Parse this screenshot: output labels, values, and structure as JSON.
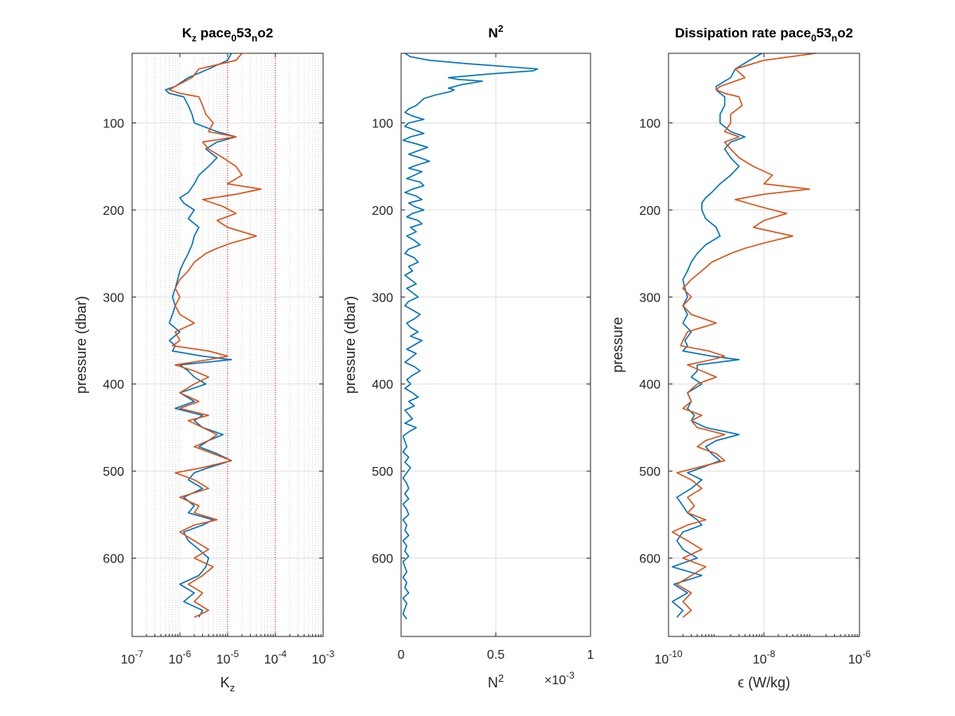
{
  "colors": {
    "series1": "#0072BD",
    "series2": "#D95319",
    "ref_line": "#C00000",
    "axis": "#262626",
    "grid": "#DFDFDF"
  },
  "chart_data": [
    {
      "type": "line",
      "title_main": "K",
      "title_sub1": "z",
      "title_mid": " pace",
      "title_sub2": "0",
      "title_mid2": "53",
      "title_sub3": "n",
      "title_end": "o2",
      "xlabel_main": "K",
      "xlabel_sub": "z",
      "ylabel": "pressure (dbar)",
      "xscale": "log",
      "xlim": [
        1e-07,
        0.001
      ],
      "ylim": [
        20,
        690
      ],
      "yreverse": true,
      "grid": "minor",
      "x_tick_values": [
        1e-07,
        1e-06,
        1e-05,
        0.0001,
        0.001
      ],
      "x_tick_base": "10",
      "x_tick_exps": [
        "-7",
        "-6",
        "-5",
        "-4",
        "-3"
      ],
      "y_ticks": [
        100,
        200,
        300,
        400,
        500,
        600
      ],
      "reference_lines_x": [
        1e-05,
        0.0001
      ],
      "series": [
        {
          "y": [
            20,
            28,
            38,
            48,
            58,
            62,
            66,
            70,
            80,
            90,
            100,
            110,
            116,
            122,
            130,
            140,
            150,
            160,
            170,
            180,
            186,
            192,
            200,
            210,
            220,
            230,
            240,
            250,
            260,
            270,
            280,
            290,
            300,
            310,
            320,
            330,
            340,
            350,
            356,
            362,
            368,
            372,
            378,
            385,
            392,
            400,
            410,
            420,
            428,
            436,
            442,
            450,
            458,
            465,
            472,
            480,
            488,
            496,
            502,
            510,
            520,
            530,
            540,
            548,
            556,
            562,
            570,
            580,
            590,
            600,
            610,
            620,
            630,
            640,
            650,
            660,
            668
          ],
          "x": [
            1.2e-05,
            1e-05,
            4e-06,
            1.5e-06,
            8e-07,
            5e-07,
            6e-07,
            1.2e-06,
            1.5e-06,
            1.8e-06,
            2e-06,
            6e-06,
            1.5e-05,
            6e-06,
            3.5e-06,
            6e-06,
            4e-06,
            2.5e-06,
            2e-06,
            1.5e-06,
            1e-06,
            1.2e-06,
            2e-06,
            1.5e-06,
            2.5e-06,
            2e-06,
            1.8e-06,
            1.5e-06,
            1.2e-06,
            1e-06,
            9e-07,
            8e-07,
            7e-07,
            8e-07,
            7e-07,
            6e-07,
            1e-06,
            6e-07,
            8e-07,
            7e-07,
            3e-06,
            1.2e-05,
            1e-06,
            1.5e-06,
            2e-06,
            3.5e-06,
            1e-06,
            2e-06,
            8e-07,
            3e-06,
            2e-06,
            3e-06,
            8e-06,
            4e-06,
            2.5e-06,
            6e-06,
            1.2e-05,
            4e-06,
            2e-06,
            1.5e-06,
            3e-06,
            1.2e-06,
            2e-06,
            1.5e-06,
            5e-06,
            3e-06,
            1.2e-06,
            1.5e-06,
            2.5e-06,
            4e-06,
            3.5e-06,
            2.5e-06,
            1e-06,
            2e-06,
            1.2e-06,
            3e-06,
            2.5e-06
          ]
        },
        {
          "y": [
            20,
            28,
            38,
            48,
            58,
            62,
            66,
            70,
            80,
            90,
            100,
            110,
            116,
            122,
            130,
            140,
            150,
            160,
            170,
            176,
            182,
            188,
            196,
            204,
            212,
            220,
            230,
            238,
            244,
            250,
            260,
            270,
            280,
            290,
            300,
            310,
            320,
            330,
            340,
            350,
            356,
            362,
            368,
            372,
            378,
            385,
            392,
            400,
            410,
            420,
            428,
            436,
            442,
            450,
            458,
            465,
            472,
            480,
            488,
            496,
            502,
            510,
            520,
            530,
            540,
            548,
            556,
            562,
            570,
            580,
            590,
            600,
            610,
            620,
            630,
            640,
            650,
            660,
            668
          ],
          "x": [
            2e-05,
            1.5e-05,
            2.5e-06,
            1.8e-06,
            8e-07,
            6e-07,
            1e-06,
            2.5e-06,
            3e-06,
            3.5e-06,
            5e-06,
            4e-06,
            1.5e-05,
            3e-06,
            4e-06,
            8e-06,
            1.5e-05,
            2e-05,
            1e-05,
            5e-05,
            1.5e-05,
            3e-06,
            8e-06,
            1.5e-05,
            6e-06,
            1e-05,
            4e-05,
            1.2e-05,
            6e-06,
            3.5e-06,
            2e-06,
            1.5e-06,
            1e-06,
            8e-07,
            1e-06,
            8e-07,
            1e-06,
            2e-06,
            8e-07,
            1e-06,
            7e-07,
            4e-06,
            1e-05,
            4e-06,
            8e-07,
            2e-06,
            4e-06,
            2e-06,
            1e-06,
            2.5e-06,
            1e-06,
            4e-06,
            1.5e-06,
            3e-06,
            6e-06,
            4e-06,
            2e-06,
            5e-06,
            1.2e-05,
            3e-06,
            8e-07,
            2e-06,
            4e-06,
            1e-06,
            2.5e-06,
            2e-06,
            6e-06,
            2e-06,
            1e-06,
            2e-06,
            4e-06,
            2e-06,
            5e-06,
            3e-06,
            1.5e-06,
            3e-06,
            2e-06,
            4e-06,
            2e-06
          ]
        }
      ]
    },
    {
      "type": "line",
      "title_main": "N",
      "title_sup": "2",
      "xlabel_main": "N",
      "xlabel_sup": "2",
      "ylabel": "pressure (dbar)",
      "xscale": "linear",
      "xlim": [
        0,
        0.001
      ],
      "ylim": [
        20,
        690
      ],
      "yreverse": true,
      "grid": "major",
      "x_ticks": [
        0,
        0.0005,
        0.001
      ],
      "x_tick_labels": [
        "0",
        "0.5",
        "1"
      ],
      "exponent_prefix": "×10",
      "exponent_power": "-3",
      "y_ticks": [
        100,
        200,
        300,
        400,
        500,
        600
      ],
      "series": [
        {
          "y": [
            20,
            24,
            28,
            32,
            36,
            38,
            40,
            44,
            48,
            50,
            52,
            56,
            60,
            62,
            64,
            68,
            72,
            76,
            80,
            84,
            88,
            92,
            96,
            100,
            104,
            108,
            112,
            116,
            120,
            124,
            128,
            132,
            136,
            140,
            144,
            148,
            152,
            156,
            160,
            164,
            168,
            172,
            176,
            180,
            184,
            188,
            192,
            196,
            200,
            204,
            208,
            212,
            216,
            220,
            225,
            230,
            235,
            240,
            245,
            250,
            255,
            260,
            265,
            270,
            275,
            280,
            285,
            290,
            295,
            300,
            305,
            310,
            315,
            320,
            325,
            330,
            335,
            340,
            345,
            350,
            355,
            360,
            365,
            370,
            375,
            380,
            385,
            390,
            395,
            400,
            405,
            410,
            415,
            420,
            425,
            430,
            435,
            440,
            445,
            450,
            455,
            460,
            466,
            472,
            478,
            484,
            490,
            496,
            502,
            508,
            514,
            520,
            526,
            532,
            538,
            544,
            550,
            556,
            562,
            568,
            574,
            580,
            586,
            592,
            598,
            604,
            610,
            616,
            622,
            628,
            634,
            640,
            646,
            652,
            658,
            664,
            670
          ],
          "x": [
            2e-05,
            5e-05,
            0.00015,
            0.00035,
            0.0006,
            0.00072,
            0.0007,
            0.00045,
            0.00025,
            0.0003,
            0.00043,
            0.00032,
            0.00025,
            0.00028,
            0.00026,
            0.00018,
            0.00012,
            0.0001,
            8e-05,
            4e-05,
            2e-05,
            6e-05,
            0.00012,
            4e-05,
            2e-05,
            7e-05,
            0.00012,
            5e-05,
            1e-05,
            8e-05,
            0.00014,
            9e-05,
            4e-05,
            0.0001,
            0.00015,
            9e-05,
            4e-05,
            0.00011,
            7e-05,
            3e-05,
            0.0001,
            0.00012,
            6e-05,
            2e-05,
            8e-05,
            0.00011,
            4e-05,
            7e-05,
            0.00012,
            6e-05,
            3e-05,
            9e-05,
            0.00011,
            5e-05,
            8e-05,
            3e-05,
            7e-05,
            0.0001,
            4e-05,
            2e-05,
            7e-05,
            9e-05,
            4e-05,
            6e-05,
            2e-05,
            5e-05,
            8e-05,
            3e-05,
            6e-05,
            9e-05,
            4e-05,
            2e-05,
            6e-05,
            0.0001,
            7e-05,
            3e-05,
            5e-05,
            9e-05,
            5e-05,
            0.00011,
            7e-05,
            3e-05,
            8e-05,
            5e-05,
            2e-05,
            7e-05,
            0.0001,
            6e-05,
            3e-05,
            5e-05,
            2e-05,
            6e-05,
            9e-05,
            4e-05,
            7e-05,
            2e-05,
            4e-05,
            6e-05,
            2e-05,
            8e-05,
            4e-05,
            1e-05,
            2e-05,
            3e-05,
            1e-05,
            4e-05,
            2e-05,
            5e-05,
            3e-05,
            1e-05,
            3e-05,
            4e-05,
            2e-05,
            4e-05,
            1e-05,
            3e-05,
            4e-05,
            1e-05,
            3e-05,
            2e-05,
            4e-05,
            1e-05,
            3e-05,
            2e-05,
            4e-05,
            1e-05,
            2e-05,
            3e-05,
            1e-05,
            3e-05,
            2e-05,
            4e-05,
            1e-05,
            3e-05,
            2e-05,
            1e-05,
            3e-05
          ]
        }
      ]
    },
    {
      "type": "line",
      "title_main": "Dissipation rate pace",
      "title_sub1": "0",
      "title_mid": "53",
      "title_sub2": "n",
      "title_end": "o2",
      "xlabel": "ϵ (W/kg)",
      "ylabel": "pressure",
      "xscale": "log",
      "xlim": [
        1e-10,
        1e-06
      ],
      "ylim": [
        20,
        690
      ],
      "yreverse": true,
      "grid": "major",
      "x_tick_values": [
        1e-10,
        1e-08,
        1e-06
      ],
      "x_tick_base": "10",
      "x_tick_exps": [
        "-10",
        "-8",
        "-6"
      ],
      "y_ticks": [
        100,
        200,
        300,
        400,
        500,
        600
      ],
      "series": [
        {
          "y": [
            20,
            28,
            38,
            48,
            58,
            62,
            66,
            70,
            80,
            90,
            100,
            110,
            116,
            122,
            130,
            140,
            150,
            160,
            170,
            180,
            186,
            192,
            200,
            210,
            220,
            230,
            240,
            250,
            260,
            270,
            280,
            290,
            300,
            310,
            320,
            330,
            340,
            350,
            356,
            362,
            368,
            372,
            378,
            385,
            392,
            400,
            410,
            420,
            428,
            436,
            442,
            450,
            458,
            465,
            472,
            480,
            488,
            496,
            502,
            510,
            520,
            530,
            540,
            548,
            556,
            562,
            570,
            580,
            590,
            600,
            610,
            620,
            630,
            640,
            650,
            660,
            668
          ],
          "x": [
            9e-09,
            5e-09,
            2.5e-09,
            2e-09,
            1e-09,
            1e-09,
            1.2e-09,
            1.5e-09,
            1.5e-09,
            1.2e-09,
            1.2e-09,
            2e-09,
            4e-09,
            2e-09,
            1.5e-09,
            2e-09,
            3e-09,
            2e-09,
            1.2e-09,
            8e-10,
            6e-10,
            5e-10,
            5e-10,
            6e-10,
            1e-09,
            1.2e-09,
            6e-10,
            4e-10,
            3e-10,
            2.5e-10,
            2e-10,
            2.2e-10,
            2.5e-10,
            2e-10,
            2.5e-10,
            2e-10,
            3e-10,
            2.2e-10,
            2.5e-10,
            2e-10,
            8e-10,
            3e-09,
            4e-10,
            4e-10,
            3e-10,
            5e-10,
            2.5e-10,
            3e-10,
            2.5e-10,
            3.5e-10,
            3e-10,
            6e-10,
            3e-09,
            1e-09,
            6e-10,
            8e-10,
            1.2e-09,
            5e-10,
            2.5e-10,
            5e-10,
            3e-10,
            1.5e-10,
            2e-10,
            2.5e-10,
            4e-10,
            5e-10,
            2e-10,
            1.5e-10,
            2e-10,
            4e-10,
            1.2e-10,
            5e-10,
            1.3e-10,
            2.5e-10,
            1.2e-10,
            2e-10,
            1.5e-10
          ]
        },
        {
          "y": [
            20,
            28,
            38,
            48,
            58,
            62,
            66,
            70,
            80,
            90,
            100,
            110,
            116,
            122,
            130,
            140,
            150,
            160,
            170,
            176,
            182,
            188,
            196,
            204,
            212,
            220,
            230,
            238,
            244,
            250,
            260,
            270,
            280,
            290,
            300,
            310,
            320,
            330,
            340,
            350,
            356,
            362,
            368,
            372,
            378,
            385,
            392,
            400,
            410,
            420,
            428,
            436,
            442,
            450,
            458,
            465,
            472,
            480,
            488,
            496,
            502,
            510,
            520,
            530,
            540,
            548,
            556,
            562,
            570,
            580,
            590,
            600,
            610,
            620,
            630,
            640,
            650,
            660,
            668
          ],
          "x": [
            1.2e-07,
            1e-08,
            2.5e-09,
            4e-09,
            1.2e-09,
            1e-09,
            1.5e-09,
            3e-09,
            3.5e-09,
            2e-09,
            2e-09,
            1.5e-09,
            3e-09,
            1.5e-09,
            2e-09,
            3e-09,
            6e-09,
            1.5e-08,
            1e-08,
            9e-08,
            1e-08,
            2.5e-09,
            8e-09,
            3e-08,
            1e-08,
            6e-09,
            4e-08,
            1e-08,
            4e-09,
            2e-09,
            8e-10,
            5e-10,
            3e-10,
            2e-10,
            3e-10,
            2e-10,
            3e-10,
            1e-09,
            2.5e-10,
            2e-10,
            1.8e-10,
            7e-10,
            1.5e-09,
            8e-10,
            2.5e-10,
            5e-10,
            1e-09,
            4e-10,
            2.5e-10,
            3e-10,
            2e-10,
            5e-10,
            3e-10,
            4e-10,
            1.5e-09,
            6e-10,
            4e-10,
            1e-09,
            1.5e-09,
            4e-10,
            1.5e-10,
            3e-10,
            5e-10,
            2.5e-10,
            3.5e-10,
            2.5e-10,
            6e-10,
            2.5e-10,
            1.2e-10,
            2.5e-10,
            5e-10,
            2e-10,
            6e-10,
            3e-10,
            1.5e-10,
            3e-10,
            2e-10,
            3e-10,
            2e-10
          ]
        }
      ]
    }
  ]
}
